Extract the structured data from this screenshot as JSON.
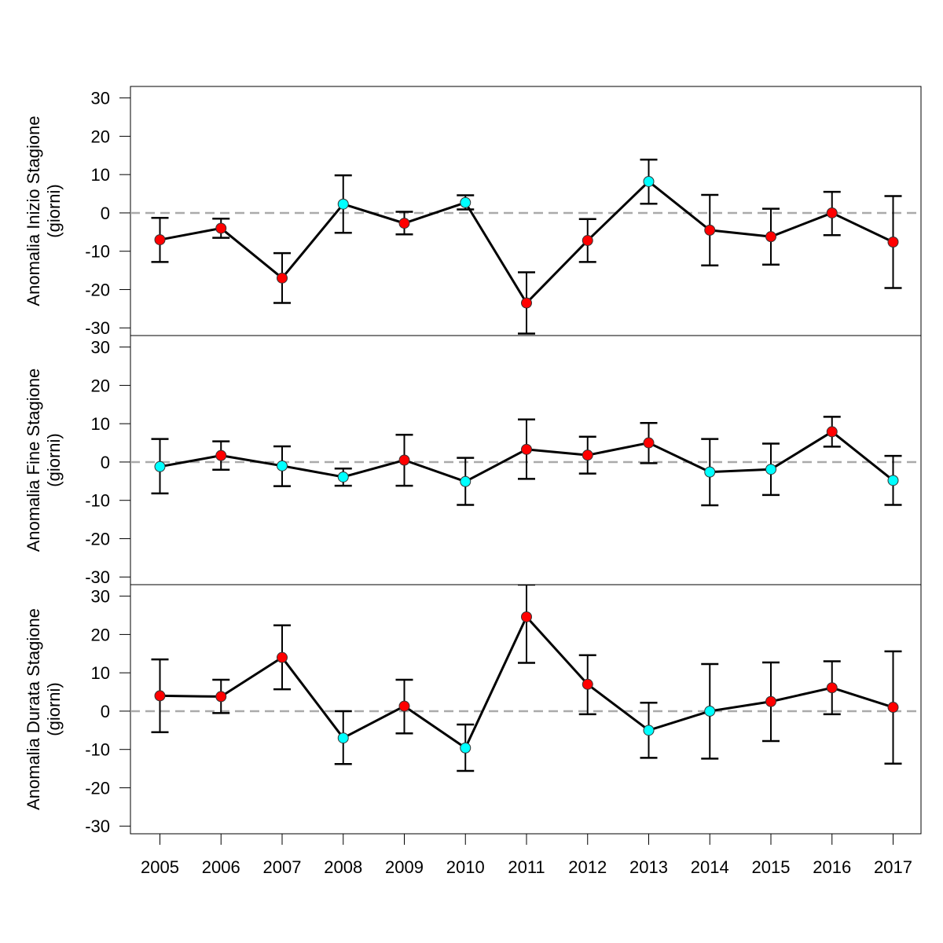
{
  "chart_data": [
    {
      "type": "line",
      "ylabel": [
        "Anomalia Inizio Stagione",
        "(giorni)"
      ],
      "ylim": [
        -32,
        33
      ],
      "yticks": [
        -30,
        -20,
        -10,
        0,
        10,
        20,
        30
      ],
      "reference_line": 0,
      "x": [
        2005,
        2006,
        2007,
        2008,
        2009,
        2010,
        2011,
        2012,
        2013,
        2014,
        2015,
        2016,
        2017
      ],
      "values": [
        -7,
        -4,
        -17,
        2.3,
        -2.7,
        2.7,
        -23.5,
        -7.2,
        8.2,
        -4.5,
        -6.2,
        0,
        -7.6
      ],
      "err_low": [
        -12.8,
        -6.5,
        -23.5,
        -5.2,
        -5.6,
        0.9,
        -31.5,
        -12.8,
        2.4,
        -13.7,
        -13.5,
        -5.8,
        -19.6
      ],
      "err_high": [
        -1.3,
        -1.5,
        -10.5,
        9.8,
        0.3,
        4.6,
        -15.5,
        -1.6,
        13.9,
        4.7,
        1.1,
        5.5,
        4.4
      ],
      "marker_colors": [
        "red",
        "red",
        "red",
        "cyan",
        "red",
        "cyan",
        "red",
        "red",
        "cyan",
        "red",
        "red",
        "red",
        "red"
      ]
    },
    {
      "type": "line",
      "ylabel": [
        "Anomalia Fine Stagione",
        "(giorni)"
      ],
      "ylim": [
        -32,
        33
      ],
      "yticks": [
        -30,
        -20,
        -10,
        0,
        10,
        20,
        30
      ],
      "reference_line": 0,
      "x": [
        2005,
        2006,
        2007,
        2008,
        2009,
        2010,
        2011,
        2012,
        2013,
        2014,
        2015,
        2016,
        2017
      ],
      "values": [
        -1.2,
        1.7,
        -1,
        -3.9,
        0.5,
        -5.1,
        3.3,
        1.8,
        5,
        -2.6,
        -1.9,
        7.9,
        -4.8
      ],
      "err_low": [
        -8.2,
        -2,
        -6.3,
        -6.2,
        -6.2,
        -11.2,
        -4.4,
        -3,
        -0.3,
        -11.3,
        -8.6,
        4,
        -11.2
      ],
      "err_high": [
        6,
        5.4,
        4.1,
        -1.7,
        7.1,
        1.1,
        11.1,
        6.6,
        10.2,
        6,
        4.8,
        11.8,
        1.6
      ],
      "marker_colors": [
        "cyan",
        "red",
        "cyan",
        "cyan",
        "red",
        "cyan",
        "red",
        "red",
        "red",
        "cyan",
        "cyan",
        "red",
        "cyan"
      ]
    },
    {
      "type": "line",
      "ylabel": [
        "Anomalia Durata Stagione",
        "(giorni)"
      ],
      "ylim": [
        -32,
        33
      ],
      "yticks": [
        -30,
        -20,
        -10,
        0,
        10,
        20,
        30
      ],
      "reference_line": 0,
      "x": [
        2005,
        2006,
        2007,
        2008,
        2009,
        2010,
        2011,
        2012,
        2013,
        2014,
        2015,
        2016,
        2017
      ],
      "values": [
        4,
        3.8,
        14,
        -7,
        1.3,
        -9.6,
        24.6,
        7,
        -5,
        0,
        2.5,
        6.1,
        1
      ],
      "err_low": [
        -5.5,
        -0.5,
        5.7,
        -13.8,
        -5.8,
        -15.6,
        12.6,
        -0.8,
        -12.2,
        -12.4,
        -7.8,
        -0.8,
        -13.7
      ],
      "err_high": [
        13.5,
        8.2,
        22.4,
        0,
        8.2,
        -3.5,
        33,
        14.6,
        2.2,
        12.3,
        12.7,
        13,
        15.6
      ],
      "marker_colors": [
        "red",
        "red",
        "red",
        "cyan",
        "red",
        "cyan",
        "red",
        "red",
        "cyan",
        "cyan",
        "red",
        "red",
        "red"
      ]
    }
  ],
  "colors": {
    "red": "#ff0000",
    "cyan": "#00ffff",
    "line": "#000000",
    "reference": "#aaaaaa"
  }
}
